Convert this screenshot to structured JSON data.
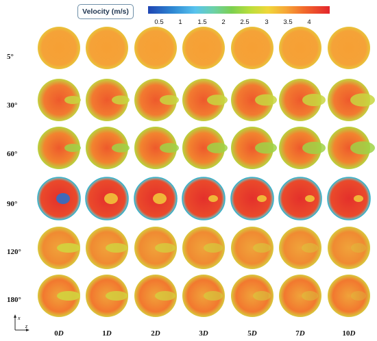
{
  "colorbar": {
    "title": "Velocity (m/s)",
    "ticks": [
      "0.5",
      "1",
      "1.5",
      "2",
      "2.5",
      "3",
      "3.5",
      "4"
    ]
  },
  "rows": [
    "5°",
    "30°",
    "60°",
    "90°",
    "120°",
    "180°"
  ],
  "columns": [
    {
      "num": "0",
      "unit": "D"
    },
    {
      "num": "1",
      "unit": "D"
    },
    {
      "num": "2",
      "unit": "D"
    },
    {
      "num": "3",
      "unit": "D"
    },
    {
      "num": "5",
      "unit": "D"
    },
    {
      "num": "7",
      "unit": "D"
    },
    {
      "num": "10",
      "unit": "D"
    }
  ],
  "axes": {
    "x": "x",
    "z": "z"
  }
}
